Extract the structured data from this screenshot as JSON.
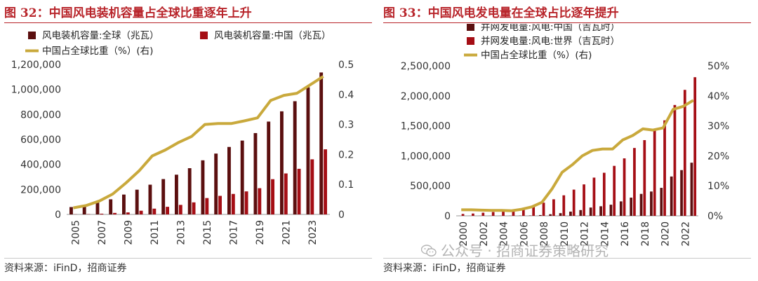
{
  "colors": {
    "accent_red": "#b8242a",
    "dark_bar": "#5b0f0f",
    "red_bar": "#a50e15",
    "gold_line": "#c9a93c",
    "axis": "#333333"
  },
  "watermark": {
    "text": "公众号 · 招商证券策略研究",
    "icon": "wechat-icon"
  },
  "panels": [
    {
      "title": "图 32：中国风电装机容量占全球比重逐年上升",
      "source": "资料来源：iFinD，招商证券",
      "chart_data": {
        "type": "bar",
        "title": "中国风电装机容量占全球比重逐年上升",
        "categories": [
          "2005",
          "2006",
          "2007",
          "2008",
          "2009",
          "2010",
          "2011",
          "2012",
          "2013",
          "2014",
          "2015",
          "2016",
          "2017",
          "2018",
          "2019",
          "2020",
          "2021",
          "2022",
          "2023",
          "2024"
        ],
        "x_tick_labels": [
          "2005",
          "2007",
          "2009",
          "2011",
          "2013",
          "2015",
          "2017",
          "2019",
          "2021",
          "2023"
        ],
        "series": [
          {
            "name": "风电装机容量:全球（兆瓦）",
            "type": "bar",
            "axis": "left",
            "values": [
              59000,
              74000,
              94000,
              121000,
              159000,
              198000,
              238000,
              283000,
              318000,
              370000,
              433000,
              487000,
              540000,
              591000,
              651000,
              743000,
              825000,
              906000,
              1017000,
              1136000
            ]
          },
          {
            "name": "风电装机容量:中国（兆瓦）",
            "type": "bar",
            "axis": "left",
            "values": [
              1270,
              2600,
              5900,
              12000,
              16000,
              29600,
              46300,
              61000,
              76300,
              96400,
              131000,
              148600,
              164000,
              184300,
              209900,
              282000,
              328000,
              365000,
              441000,
              521000
            ]
          },
          {
            "name": "中国占全球比重（%）(右)",
            "type": "line",
            "axis": "right",
            "values": [
              0.022,
              0.03,
              0.045,
              0.068,
              0.105,
              0.145,
              0.195,
              0.215,
              0.24,
              0.26,
              0.3,
              0.303,
              0.303,
              0.312,
              0.322,
              0.38,
              0.397,
              0.404,
              0.432,
              0.46
            ]
          }
        ],
        "left_axis": {
          "min": 0,
          "max": 1200000,
          "ticks": [
            0,
            200000,
            400000,
            600000,
            800000,
            1000000,
            1200000
          ],
          "tick_labels": [
            "0",
            "200,000",
            "400,000",
            "600,000",
            "800,000",
            "1,000,000",
            "1,200,000"
          ]
        },
        "right_axis": {
          "min": 0,
          "max": 0.5,
          "ticks": [
            0,
            0.1,
            0.2,
            0.3,
            0.4,
            0.5
          ],
          "tick_labels": [
            "0",
            "0.1",
            "0.2",
            "0.3",
            "0.4",
            "0.5"
          ]
        },
        "legend": {
          "position": "top-left",
          "entries": [
            "风电装机容量:全球（兆瓦）",
            "风电装机容量:中国（兆瓦）",
            "中国占全球比重（%）(右)"
          ]
        }
      }
    },
    {
      "title": "图 33：中国风电发电量在全球占比逐年提升",
      "source": "资料来源：iFinD，招商证券",
      "chart_data": {
        "type": "bar",
        "title": "中国风电发电量在全球占比逐年提升",
        "categories": [
          "2000",
          "2001",
          "2002",
          "2003",
          "2004",
          "2005",
          "2006",
          "2007",
          "2008",
          "2009",
          "2010",
          "2011",
          "2012",
          "2013",
          "2014",
          "2015",
          "2016",
          "2017",
          "2018",
          "2019",
          "2020",
          "2021",
          "2022",
          "2023"
        ],
        "x_tick_labels": [
          "2000",
          "2002",
          "2004",
          "2006",
          "2008",
          "2010",
          "2012",
          "2014",
          "2016",
          "2018",
          "2020",
          "2022"
        ],
        "series": [
          {
            "name": "并网发电量:风电:中国（吉瓦时）",
            "type": "bar",
            "axis": "left",
            "values": [
              615,
              1000,
              1300,
              1400,
              1300,
              2000,
              3700,
              5700,
              13100,
              26900,
              44600,
              70300,
              96000,
              138300,
              159800,
              185600,
              240900,
              303400,
              365800,
              405300,
              466500,
              655600,
              762400,
              885900
            ]
          },
          {
            "name": "并网发电量:风电:世界（吉瓦时）",
            "type": "bar",
            "axis": "left",
            "values": [
              31400,
              38400,
              52300,
              63400,
              85100,
              104100,
              132900,
              170700,
              219900,
              276000,
              342000,
              437000,
              524000,
              637000,
              718000,
              833000,
              958000,
              1131000,
              1262000,
              1419000,
              1592000,
              1848000,
              2100000,
              2311000
            ]
          },
          {
            "name": "中国占全球比重（%）(右)",
            "type": "line",
            "axis": "right",
            "values": [
              0.02,
              0.02,
              0.019,
              0.018,
              0.018,
              0.017,
              0.022,
              0.03,
              0.045,
              0.09,
              0.145,
              0.17,
              0.2,
              0.218,
              0.223,
              0.223,
              0.253,
              0.268,
              0.29,
              0.286,
              0.293,
              0.355,
              0.365,
              0.385
            ]
          }
        ],
        "left_axis": {
          "min": 0,
          "max": 2500000,
          "ticks": [
            0,
            500000,
            1000000,
            1500000,
            2000000,
            2500000
          ],
          "tick_labels": [
            "0",
            "500,000",
            "1,000,000",
            "1,500,000",
            "2,000,000",
            "2,500,000"
          ]
        },
        "right_axis": {
          "min": 0,
          "max": 0.5,
          "ticks": [
            0,
            0.1,
            0.2,
            0.3,
            0.4,
            0.5
          ],
          "tick_labels": [
            "0%",
            "10%",
            "20%",
            "30%",
            "40%",
            "50%"
          ]
        },
        "legend": {
          "position": "top-center",
          "entries": [
            "并网发电量:风电:中国（吉瓦时）",
            "并网发电量:风电:世界（吉瓦时）",
            "中国占全球比重（%）(右)"
          ]
        }
      }
    }
  ]
}
